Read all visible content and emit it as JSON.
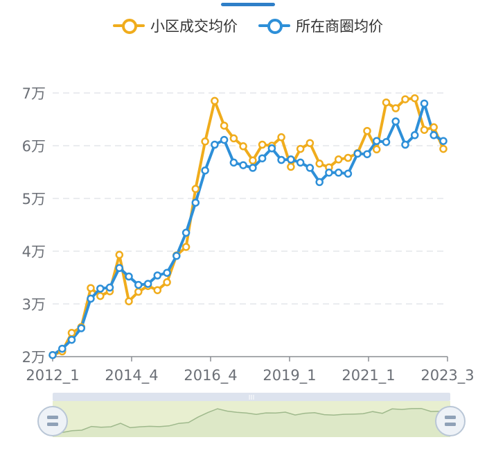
{
  "legend": {
    "series1": "小区成交均价",
    "series2": "所在商圈均价"
  },
  "colors": {
    "series1": "#f0ac1c",
    "series2": "#2d8fd8",
    "grid": "#e3e6ea",
    "axis_text": "#6b6f76",
    "slider_fill": "#e8efd0",
    "slider_handle": "#eef2f7"
  },
  "slider": {
    "grip_label": "III",
    "handle_icon": "drag-handle-icon"
  },
  "chart_data": {
    "type": "line",
    "ylim": [
      20000,
      70000
    ],
    "y_ticks": [
      {
        "value": 20000,
        "label": "2万"
      },
      {
        "value": 30000,
        "label": "3万"
      },
      {
        "value": 40000,
        "label": "4万"
      },
      {
        "value": 50000,
        "label": "5万"
      },
      {
        "value": 60000,
        "label": "6万"
      },
      {
        "value": 70000,
        "label": "7万"
      }
    ],
    "x_ticks": [
      {
        "index": 0,
        "label": "2012_1"
      },
      {
        "index": 15,
        "label": "2014_4"
      },
      {
        "index": 30,
        "label": "2016_4"
      },
      {
        "index": 45,
        "label": "2019_1"
      },
      {
        "index": 60,
        "label": "2021_1"
      },
      {
        "index": 75,
        "label": "2023_3"
      }
    ],
    "grid": true,
    "legend_position": "top-center",
    "series": [
      {
        "name": "小区成交均价",
        "values": [
          20300,
          21000,
          24500,
          25600,
          33000,
          31500,
          32400,
          39300,
          30500,
          32300,
          33400,
          32600,
          34100,
          39200,
          40800,
          51800,
          60800,
          68500,
          63800,
          61400,
          59900,
          57200,
          60200,
          60000,
          61600,
          56000,
          59400,
          60500,
          56600,
          55900,
          57400,
          57700,
          58600,
          62800,
          59300,
          68200,
          67100,
          68800,
          69000,
          63000,
          63500,
          59400
        ]
      },
      {
        "name": "所在商圈均价",
        "values": [
          20300,
          21500,
          23200,
          25400,
          31000,
          32900,
          33100,
          36800,
          35200,
          33600,
          33800,
          35400,
          35900,
          39100,
          43500,
          49200,
          55300,
          60200,
          61100,
          56800,
          56300,
          55800,
          57600,
          59500,
          57300,
          57400,
          56800,
          55800,
          53100,
          54900,
          54900,
          54700,
          58500,
          58400,
          60900,
          60700,
          64600,
          60200,
          62000,
          68000,
          62000,
          60900
        ]
      }
    ]
  }
}
